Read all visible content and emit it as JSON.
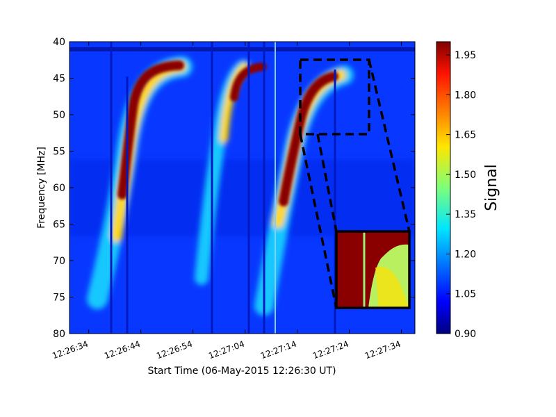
{
  "chart_data": {
    "type": "heatmap",
    "x_label": "Start Time (06-May-2015 12:26:30 UT)",
    "y_label": "Frequency  [MHz]",
    "colorbar_label": "Signal",
    "colormap": "jet",
    "xlim": [
      0.3,
      66.6
    ],
    "xticks": [
      {
        "value": 4,
        "label": "12:26:34"
      },
      {
        "value": 14,
        "label": "12:26:44"
      },
      {
        "value": 24,
        "label": "12:26:54"
      },
      {
        "value": 34,
        "label": "12:27:04"
      },
      {
        "value": 44,
        "label": "12:27:14"
      },
      {
        "value": 54,
        "label": "12:27:24"
      },
      {
        "value": 64,
        "label": "12:27:34"
      }
    ],
    "ylim": [
      80,
      40
    ],
    "yticks": [
      40,
      45,
      50,
      55,
      60,
      65,
      70,
      75,
      80
    ],
    "clim": [
      0.9,
      2.0
    ],
    "cticks": [
      {
        "value": 0.9,
        "label": "0.90"
      },
      {
        "value": 1.05,
        "label": "1.05"
      },
      {
        "value": 1.2,
        "label": "1.20"
      },
      {
        "value": 1.35,
        "label": "1.35"
      },
      {
        "value": 1.5,
        "label": "1.50"
      },
      {
        "value": 1.65,
        "label": "1.65"
      },
      {
        "value": 1.8,
        "label": "1.80"
      },
      {
        "value": 1.95,
        "label": "1.95"
      }
    ]
  }
}
